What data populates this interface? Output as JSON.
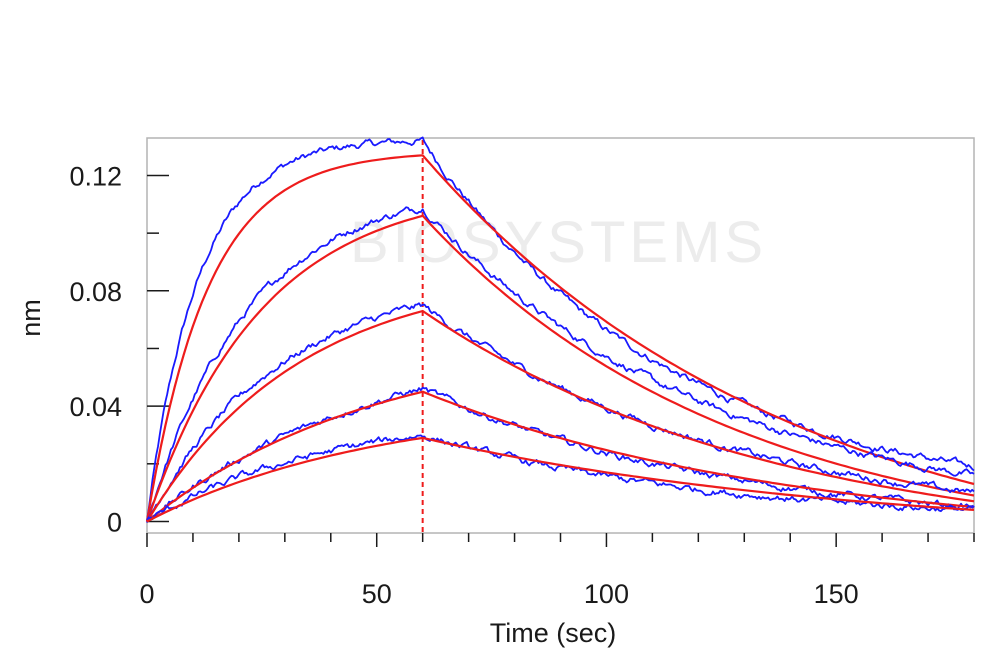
{
  "chart_data": {
    "type": "line",
    "title": "",
    "xlabel": "Time (sec)",
    "ylabel": "nm",
    "xlim": [
      0,
      180
    ],
    "ylim": [
      -0.004,
      0.133
    ],
    "x_ticks": [
      0,
      50,
      100,
      150
    ],
    "x_tick_labels": [
      "0",
      "50",
      "100",
      "150"
    ],
    "x_minor_step": 10,
    "y_ticks": [
      0,
      0.04,
      0.08,
      0.12
    ],
    "y_tick_labels": [
      "0",
      "0.04",
      "0.08",
      "0.12"
    ],
    "y_minor_step": 0.02,
    "association_end": 60,
    "watermark": "BIOSYSTEMS",
    "colors": {
      "measured": "#1a1aff",
      "fit": "#ee1c1c",
      "marker": "#ee1c1c",
      "frame": "#b4b4b4",
      "axis": "#1a1a1a"
    },
    "series": [
      {
        "name": "measured-1",
        "kind": "measured",
        "association_end": 60,
        "peak": 0.132,
        "k_on": 0.09,
        "k_off": 0.018,
        "end_value": 0.019
      },
      {
        "name": "fit-1",
        "kind": "fit",
        "association_end": 60,
        "peak": 0.127,
        "k_on": 0.075,
        "k_off": 0.0125,
        "end_value": 0.013
      },
      {
        "name": "measured-2",
        "kind": "measured",
        "association_end": 60,
        "peak": 0.109,
        "k_on": 0.045,
        "k_off": 0.016,
        "end_value": 0.016
      },
      {
        "name": "fit-2",
        "kind": "fit",
        "association_end": 60,
        "peak": 0.106,
        "k_on": 0.04,
        "k_off": 0.0148,
        "end_value": 0.009
      },
      {
        "name": "measured-3",
        "kind": "measured",
        "association_end": 60,
        "peak": 0.075,
        "k_on": 0.035,
        "k_off": 0.0155,
        "end_value": 0.01
      },
      {
        "name": "fit-3",
        "kind": "fit",
        "association_end": 60,
        "peak": 0.073,
        "k_on": 0.03,
        "k_off": 0.013,
        "end_value": 0.007
      },
      {
        "name": "measured-4",
        "kind": "measured",
        "association_end": 60,
        "peak": 0.046,
        "k_on": 0.02,
        "k_off": 0.015,
        "end_value": 0.005
      },
      {
        "name": "fit-4",
        "kind": "fit",
        "association_end": 60,
        "peak": 0.045,
        "k_on": 0.02,
        "k_off": 0.0125,
        "end_value": 0.005
      },
      {
        "name": "measured-5",
        "kind": "measured",
        "association_end": 60,
        "peak": 0.03,
        "k_on": 0.025,
        "k_off": 0.016,
        "end_value": 0.004
      },
      {
        "name": "fit-5",
        "kind": "fit",
        "association_end": 60,
        "peak": 0.029,
        "k_on": 0.02,
        "k_off": 0.0105,
        "end_value": 0.004
      }
    ]
  }
}
